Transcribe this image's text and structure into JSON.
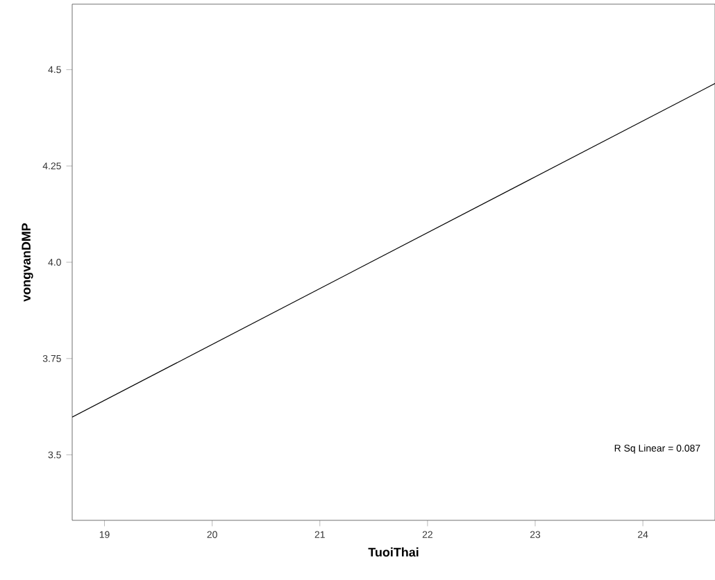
{
  "chart_data": {
    "type": "line",
    "xlabel": "TuoiThai",
    "ylabel": "vongvanDMP",
    "x": [
      18.7,
      24.67
    ],
    "series": [
      {
        "color": "#000000",
        "values": [
          3.598,
          4.464
        ]
      }
    ],
    "xlim": [
      18.7,
      24.67
    ],
    "ylim": [
      3.33,
      4.67
    ],
    "xticks": [
      19,
      20,
      21,
      22,
      23,
      24
    ],
    "yticks": [
      {
        "value": 3.5,
        "label": "3.5"
      },
      {
        "value": 3.75,
        "label": "3.75"
      },
      {
        "value": 4.0,
        "label": "4.0"
      },
      {
        "value": 4.25,
        "label": "4.25"
      },
      {
        "value": 4.5,
        "label": "4.5"
      }
    ],
    "annotations": [
      "R Sq Linear = 0.087"
    ]
  }
}
